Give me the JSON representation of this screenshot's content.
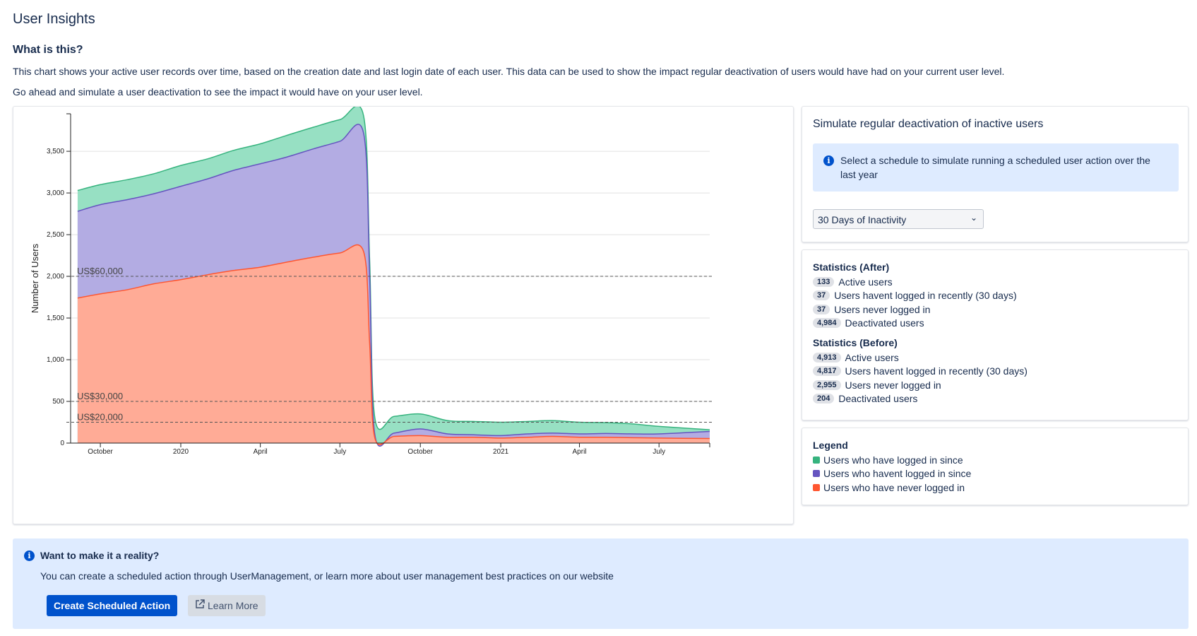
{
  "page": {
    "title": "User Insights",
    "section_title": "What is this?",
    "description_1": "This chart shows your active user records over time, based on the creation date and last login date of each user. This data can be used to show the impact regular deactivation of users would have had on your current user level.",
    "description_2": "Go ahead and simulate a user deactivation to see the impact it would have on your user level."
  },
  "simulate": {
    "title": "Simulate regular deactivation of inactive users",
    "info": "Select a schedule to simulate running a scheduled user action over the last year",
    "select_value": "30 Days of Inactivity",
    "info_icon": "info-icon"
  },
  "stats_after": {
    "title": "Statistics (After)",
    "rows": [
      {
        "count": "133",
        "label": "Active users"
      },
      {
        "count": "37",
        "label": "Users havent logged in recently (30 days)"
      },
      {
        "count": "37",
        "label": "Users never logged in"
      },
      {
        "count": "4,984",
        "label": "Deactivated users"
      }
    ]
  },
  "stats_before": {
    "title": "Statistics (Before)",
    "rows": [
      {
        "count": "4,913",
        "label": "Active users"
      },
      {
        "count": "4,817",
        "label": "Users havent logged in recently (30 days)"
      },
      {
        "count": "2,955",
        "label": "Users never logged in"
      },
      {
        "count": "204",
        "label": "Deactivated users"
      }
    ]
  },
  "legend": {
    "title": "Legend",
    "items": [
      {
        "label": "Users who have logged in since",
        "color": "#36b37e"
      },
      {
        "label": "Users who havent logged in since",
        "color": "#6554c0"
      },
      {
        "label": "Users who have never logged in",
        "color": "#ff5630"
      }
    ]
  },
  "cta": {
    "title": "Want to make it a reality?",
    "text": "You can create a scheduled action through UserManagement, or learn more about user management best practices on our website",
    "primary_label": "Create Scheduled Action",
    "secondary_label": "Learn More",
    "secondary_icon": "external-link-icon"
  },
  "chart_data": {
    "type": "area",
    "xlabel": "",
    "ylabel": "Number of Users",
    "ylim": [
      0,
      3950
    ],
    "yticks": [
      0,
      500,
      1000,
      1500,
      2000,
      2500,
      3000,
      3500
    ],
    "ytick_labels": [
      "0",
      "500",
      "1,000",
      "1,500",
      "2,000",
      "2,500",
      "3,000",
      "3,500"
    ],
    "xlim": [
      "2019-08-28",
      "2021-08-28"
    ],
    "xticks": [
      {
        "date": "2019-10-01",
        "label": "October"
      },
      {
        "date": "2020-01-01",
        "label": "2020"
      },
      {
        "date": "2020-04-01",
        "label": "April"
      },
      {
        "date": "2020-07-01",
        "label": "July"
      },
      {
        "date": "2020-10-01",
        "label": "October"
      },
      {
        "date": "2021-01-01",
        "label": "2021"
      },
      {
        "date": "2021-04-01",
        "label": "April"
      },
      {
        "date": "2021-07-01",
        "label": "July"
      }
    ],
    "colors": {
      "never": {
        "fill": "#ffab96",
        "stroke": "#ff5630"
      },
      "havent": {
        "fill": "#b3ace3",
        "stroke": "#6554c0"
      },
      "since": {
        "fill": "#97e0c3",
        "stroke": "#36b37e"
      }
    },
    "x": [
      "2019-09-05",
      "2019-10-01",
      "2019-11-01",
      "2019-12-01",
      "2020-01-01",
      "2020-02-01",
      "2020-03-01",
      "2020-04-01",
      "2020-05-01",
      "2020-06-01",
      "2020-07-01",
      "2020-07-28",
      "2020-08-04",
      "2020-08-10",
      "2020-09-01",
      "2020-10-01",
      "2020-11-01",
      "2020-12-01",
      "2021-01-01",
      "2021-02-01",
      "2021-03-01",
      "2021-04-01",
      "2021-05-01",
      "2021-06-01",
      "2021-07-01",
      "2021-08-28"
    ],
    "series": [
      {
        "name": "Users who have never logged in",
        "key": "never",
        "values": [
          1740,
          1790,
          1840,
          1910,
          1960,
          2020,
          2070,
          2110,
          2170,
          2230,
          2280,
          2300,
          1200,
          60,
          80,
          90,
          70,
          70,
          60,
          70,
          80,
          70,
          70,
          65,
          60,
          55
        ]
      },
      {
        "name": "Users who havent logged in since",
        "key": "havent",
        "values": [
          2780,
          2860,
          2920,
          2990,
          3080,
          3170,
          3270,
          3350,
          3430,
          3530,
          3620,
          3720,
          2000,
          100,
          120,
          170,
          110,
          100,
          90,
          110,
          120,
          110,
          115,
          110,
          110,
          140
        ]
      },
      {
        "name": "Users who have logged in since",
        "key": "since",
        "values": [
          3030,
          3100,
          3160,
          3230,
          3330,
          3410,
          3510,
          3590,
          3690,
          3790,
          3880,
          3930,
          2200,
          300,
          320,
          350,
          270,
          260,
          250,
          260,
          270,
          250,
          245,
          230,
          200,
          160
        ]
      }
    ],
    "reference_lines": [
      {
        "value": 2000,
        "label": "US$60,000"
      },
      {
        "value": 500,
        "label": "US$30,000"
      },
      {
        "value": 250,
        "label": "US$20,000"
      }
    ],
    "grid": "horizontal"
  }
}
